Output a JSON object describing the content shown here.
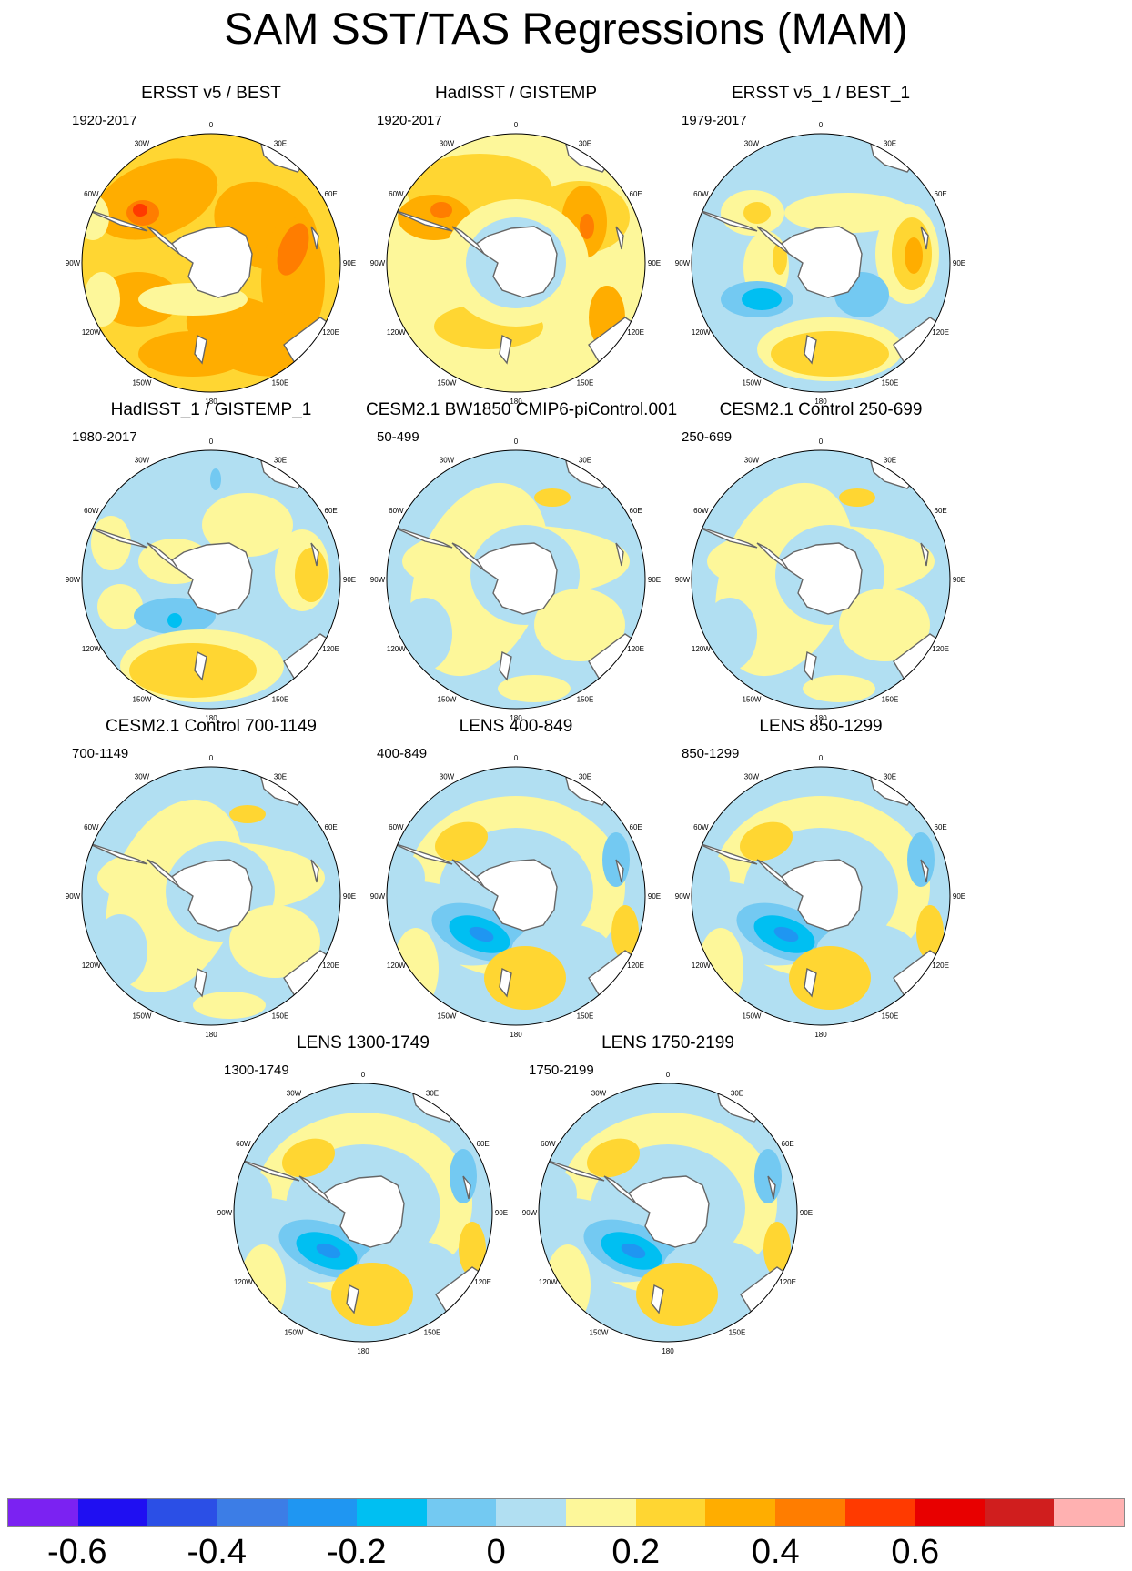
{
  "title": "SAM SST/TAS Regressions (MAM)",
  "panels": [
    {
      "title": "ERSST v5 / BEST",
      "period": "1920-2017",
      "pattern": "warm-strong"
    },
    {
      "title": "HadISST / GISTEMP",
      "period": "1920-2017",
      "pattern": "warm"
    },
    {
      "title": "ERSST v5_1 / BEST_1",
      "period": "1979-2017",
      "pattern": "mixed-obs"
    },
    {
      "title": "HadISST_1 / GISTEMP_1",
      "period": "1980-2017",
      "pattern": "mixed-obs2"
    },
    {
      "title": "CESM2.1 BW1850 CMIP6-piControl.001",
      "period": "50-499",
      "pattern": "weak"
    },
    {
      "title": "CESM2.1 Control 250-699",
      "period": "250-699",
      "pattern": "weak"
    },
    {
      "title": "CESM2.1 Control 700-1149",
      "period": "700-1149",
      "pattern": "weak"
    },
    {
      "title": "LENS 400-849",
      "period": "400-849",
      "pattern": "lens"
    },
    {
      "title": "LENS 850-1299",
      "period": "850-1299",
      "pattern": "lens"
    },
    {
      "title": "LENS 1300-1749",
      "period": "1300-1749",
      "pattern": "lens"
    },
    {
      "title": "LENS 1750-2199",
      "period": "1750-2199",
      "pattern": "lens"
    }
  ],
  "longitude_labels": [
    "0",
    "30E",
    "60E",
    "90E",
    "120E",
    "150E",
    "180",
    "150W",
    "120W",
    "90W",
    "60W",
    "30W"
  ],
  "colorbar": {
    "colors": [
      "#7b22f2",
      "#1f0ff2",
      "#2b4fe6",
      "#3c7de6",
      "#1f96f2",
      "#00bff2",
      "#73c9f2",
      "#b1dff2",
      "#fdf79a",
      "#ffd632",
      "#ffad00",
      "#ff7d00",
      "#ff3a00",
      "#e80000",
      "#d01e1e",
      "#ffb1b1"
    ],
    "labels": [
      "-0.6",
      "-0.4",
      "-0.2",
      "0",
      "0.2",
      "0.4",
      "0.6"
    ],
    "label_values": [
      -0.6,
      -0.4,
      -0.2,
      0,
      0.2,
      0.4,
      0.6
    ],
    "min": -0.7,
    "max": 0.9
  },
  "land_color": "#ffffff",
  "coast_color": "#666666"
}
